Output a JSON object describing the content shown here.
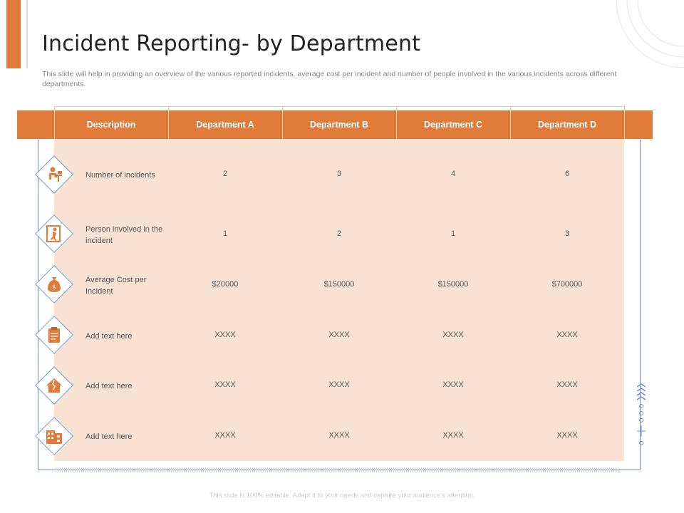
{
  "title": "Incident Reporting- by Department",
  "subtitle": "This slide will help in providing an overview of the various reported incidents, average cost per incident and  number of people involved in the various incidents across different departments.",
  "table": {
    "headers": [
      "Description",
      "Department A",
      "Department B",
      "Department C",
      "Department D"
    ],
    "rows": [
      {
        "icon": "office-worker-icon",
        "label": "Number of incidents",
        "values": [
          "2",
          "3",
          "4",
          "6"
        ]
      },
      {
        "icon": "falling-person-icon",
        "label": "Person involved in the incident",
        "values": [
          "1",
          "2",
          "1",
          "3"
        ]
      },
      {
        "icon": "money-bag-icon",
        "label": "Average Cost per Incident",
        "values": [
          "$20000",
          "$150000",
          "$150000",
          "$700000"
        ]
      },
      {
        "icon": "clipboard-icon",
        "label": "Add text here",
        "values": [
          "XXXX",
          "XXXX",
          "XXXX",
          "XXXX"
        ]
      },
      {
        "icon": "broken-house-icon",
        "label": "Add text here",
        "values": [
          "XXXX",
          "XXXX",
          "XXXX",
          "XXXX"
        ]
      },
      {
        "icon": "building-icon",
        "label": "Add text here",
        "values": [
          "XXXX",
          "XXXX",
          "XXXX",
          "XXXX"
        ]
      }
    ]
  },
  "footer": "This slide is 100% editable. Adapt it to your needs and capture your audience's attention.",
  "colors": {
    "accent": "#e07b39",
    "row_bg": "#f8e2d4",
    "frame": "#6b8fc9"
  }
}
